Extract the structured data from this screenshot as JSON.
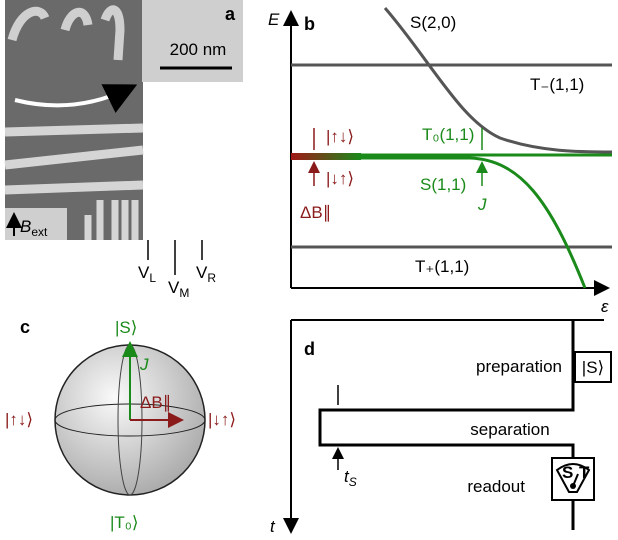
{
  "panel_a": {
    "label": "a",
    "scale_bar": "200 nm",
    "field": {
      "main": "B",
      "sub": "ext"
    },
    "gates": [
      {
        "main": "V",
        "sub": "L"
      },
      {
        "main": "V",
        "sub": "M"
      },
      {
        "main": "V",
        "sub": "R"
      }
    ]
  },
  "panel_b": {
    "label": "b",
    "y_axis": "E",
    "x_axis": "ε",
    "s20": "S(2,0)",
    "tminus": "T₋(1,1)",
    "updown": "|↑↓⟩",
    "downup": "|↓↑⟩",
    "t0": "T₀(1,1)",
    "s11": "S(1,1)",
    "j": "J",
    "delta_b": "ΔB∥",
    "tplus": "T₊(1,1)"
  },
  "panel_c": {
    "label": "c",
    "top": "|S⟩",
    "j": "J",
    "delta_b": "ΔB∥",
    "left": "|↑↓⟩",
    "right": "|↓↑⟩",
    "bottom": "|T₀⟩"
  },
  "panel_d": {
    "label": "d",
    "preparation": "preparation",
    "prep_state": "|S⟩",
    "separation": "separation",
    "ts": {
      "main": "t",
      "sub": "S"
    },
    "readout": "readout",
    "readout_s": "S",
    "readout_t": "T",
    "y_axis": "t"
  }
}
